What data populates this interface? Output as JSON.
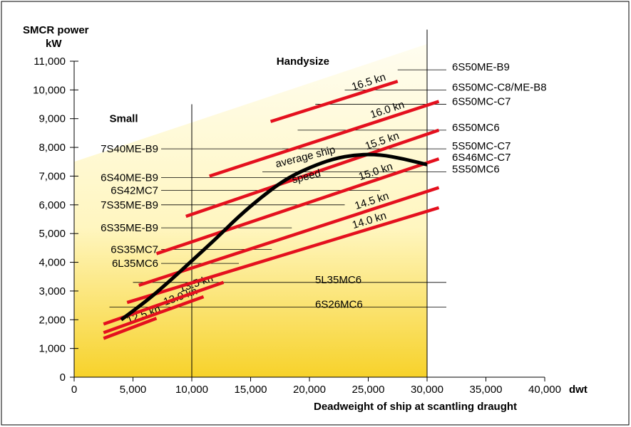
{
  "chart_data": {
    "type": "line",
    "ylabel_line1": "SMCR power",
    "ylabel_line2": "kW",
    "xlabel": "Deadweight of ship at scantling draught",
    "xunit": "dwt",
    "xlim": [
      0,
      40000
    ],
    "ylim": [
      0,
      11000
    ],
    "x_ticks": [
      "0",
      "5,000",
      "10,000",
      "15,000",
      "20,000",
      "25,000",
      "30,000",
      "35,000",
      "40,000"
    ],
    "y_ticks": [
      "0",
      "1,000",
      "2,000",
      "3,000",
      "4,000",
      "5,000",
      "6,000",
      "7,000",
      "8,000",
      "9,000",
      "10,000",
      "11,000"
    ],
    "regions": [
      {
        "name": "Small",
        "boundary_dwt": 10000
      },
      {
        "name": "Handysize",
        "boundary_dwt": 30000
      }
    ],
    "speed_lines": [
      {
        "name": "12.5 kn",
        "x": [
          2500,
          7000
        ],
        "y": [
          1350,
          2050
        ]
      },
      {
        "name": "13.0 kn",
        "x": [
          2500,
          11000
        ],
        "y": [
          1550,
          2800
        ]
      },
      {
        "name": "13.5 kn",
        "x": [
          2500,
          12700
        ],
        "y": [
          1850,
          3300
        ]
      },
      {
        "name": "14.0 kn",
        "x": [
          4500,
          31000
        ],
        "y": [
          2600,
          5900
        ]
      },
      {
        "name": "14.5 kn",
        "x": [
          5500,
          31000
        ],
        "y": [
          3200,
          6600
        ]
      },
      {
        "name": "15.0 kn",
        "x": [
          7000,
          31000
        ],
        "y": [
          4300,
          7600
        ]
      },
      {
        "name": "15.5 kn",
        "x": [
          9500,
          31000
        ],
        "y": [
          5600,
          8600
        ]
      },
      {
        "name": "16.0 kn",
        "x": [
          11500,
          31000
        ],
        "y": [
          7000,
          9600
        ]
      },
      {
        "name": "16.5 kn",
        "x": [
          16700,
          27500
        ],
        "y": [
          8900,
          10300
        ]
      }
    ],
    "average_ship_speed": {
      "name": "average ship speed",
      "label_line1": "average ship",
      "label_line2": "speed",
      "x": [
        4000,
        6000,
        8000,
        10000,
        12000,
        14000,
        16000,
        18000,
        20000,
        22000,
        24000,
        26000,
        28000,
        30000
      ],
      "y": [
        2000,
        2600,
        3300,
        4050,
        4800,
        5600,
        6300,
        6900,
        7300,
        7600,
        7750,
        7750,
        7600,
        7400
      ]
    },
    "engines": [
      {
        "name": "6S50ME-B9",
        "kw": 10700,
        "x_start": 27500
      },
      {
        "name": "6S50MC-C8/ME-B8",
        "kw": 10000,
        "x_start": 23000
      },
      {
        "name": "6S50MC-C7",
        "kw": 9500,
        "x_start": 20500
      },
      {
        "name": "6S50MC6",
        "kw": 8600,
        "x_start": 19000
      },
      {
        "name": "5S50MC-C7",
        "kw": 7950,
        "x_start": 17700
      },
      {
        "name": "6S46MC-C7",
        "kw": 7950
      },
      {
        "name": "5S50MC6",
        "kw": 7150,
        "x_start": 16000
      },
      {
        "name": "7S40ME-B9",
        "kw": 7950,
        "x_end": 27500
      },
      {
        "name": "6S40ME-B9",
        "kw": 6950,
        "x_end": 26000
      },
      {
        "name": "6S42MC7",
        "kw": 6500,
        "x_end": 26000
      },
      {
        "name": "7S35ME-B9",
        "kw": 6000,
        "x_end": 23000
      },
      {
        "name": "6S35ME-B9",
        "kw": 5200,
        "x_end": 18500
      },
      {
        "name": "6S35MC7",
        "kw": 4450,
        "x_end": 16800
      },
      {
        "name": "6L35MC6",
        "kw": 3960,
        "x_end": 14000
      },
      {
        "name": "5L35MC6",
        "kw": 3300,
        "x_start": 5000
      },
      {
        "name": "6S26MC6",
        "kw": 2440,
        "x_start": 3000
      }
    ]
  }
}
